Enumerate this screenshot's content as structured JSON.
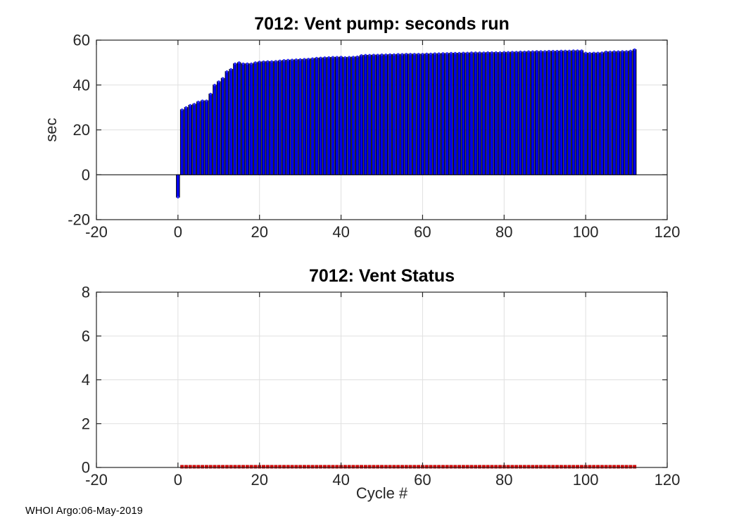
{
  "figure": {
    "background": "#ffffff",
    "footer": "WHOI Argo:06-May-2019"
  },
  "chart_data": [
    {
      "type": "bar",
      "title": "7012: Vent pump: seconds run",
      "xlabel": "",
      "ylabel": "sec",
      "xlim": [
        -20,
        120
      ],
      "ylim": [
        -20,
        60
      ],
      "xticks": [
        -20,
        0,
        20,
        40,
        60,
        80,
        100,
        120
      ],
      "yticks": [
        -20,
        0,
        20,
        40,
        60
      ],
      "grid": true,
      "legend": "none",
      "bar_color": "#0000EE",
      "bar_edge_color": "#000000",
      "marker": "dot-on-bar-top",
      "marker_color": "#2B2BFF",
      "baseline_value": 0,
      "x_start": 0,
      "x_step": 1,
      "values": [
        -10,
        29,
        30,
        31,
        31.5,
        32.5,
        33,
        33,
        36,
        40,
        41.5,
        43,
        46,
        47,
        49.5,
        50,
        49.5,
        49.5,
        49.5,
        50,
        50.3,
        50.4,
        50.5,
        50.5,
        50.6,
        50.8,
        51,
        51.1,
        51.2,
        51.3,
        51.4,
        51.5,
        51.6,
        51.8,
        52,
        52.1,
        52.2,
        52.3,
        52.4,
        52.4,
        52.5,
        52.3,
        52.4,
        52.5,
        52.6,
        53.2,
        53.3,
        53.3,
        53.4,
        53.4,
        53.5,
        53.5,
        53.6,
        53.6,
        53.7,
        53.7,
        53.8,
        53.8,
        53.8,
        53.8,
        53.8,
        53.9,
        53.9,
        54,
        54,
        54.1,
        54.1,
        54.2,
        54.2,
        54.2,
        54.3,
        54.3,
        54.4,
        54.4,
        54.4,
        54.4,
        54.5,
        54.5,
        54.5,
        54.5,
        54.6,
        54.6,
        54.7,
        54.7,
        54.8,
        54.8,
        54.9,
        54.9,
        55,
        55,
        55,
        55.1,
        55.1,
        55.1,
        55.2,
        55.2,
        55.2,
        55.3,
        55.3,
        55.3,
        54.3,
        54.2,
        54.3,
        54.3,
        54.4,
        54.8,
        54.8,
        54.9,
        54.9,
        55,
        55,
        55.2,
        55.8
      ]
    },
    {
      "type": "scatter",
      "title": "7012: Vent Status",
      "xlabel": "Cycle #",
      "ylabel": "",
      "xlim": [
        -20,
        120
      ],
      "ylim": [
        0,
        8
      ],
      "xticks": [
        -20,
        0,
        20,
        40,
        60,
        80,
        100,
        120
      ],
      "yticks": [
        0,
        2,
        4,
        6,
        8
      ],
      "grid": true,
      "legend": "none",
      "marker": "square",
      "marker_color": "#E00000",
      "marker_edge_color": "#A00000",
      "x_start": 1,
      "x_end": 112,
      "x_step": 1,
      "y_constant": 0
    }
  ],
  "style": {
    "axes_color": "#262626",
    "grid_color": "#E0E0E0",
    "title_color": "#000000",
    "tick_label_color": "#262626"
  }
}
